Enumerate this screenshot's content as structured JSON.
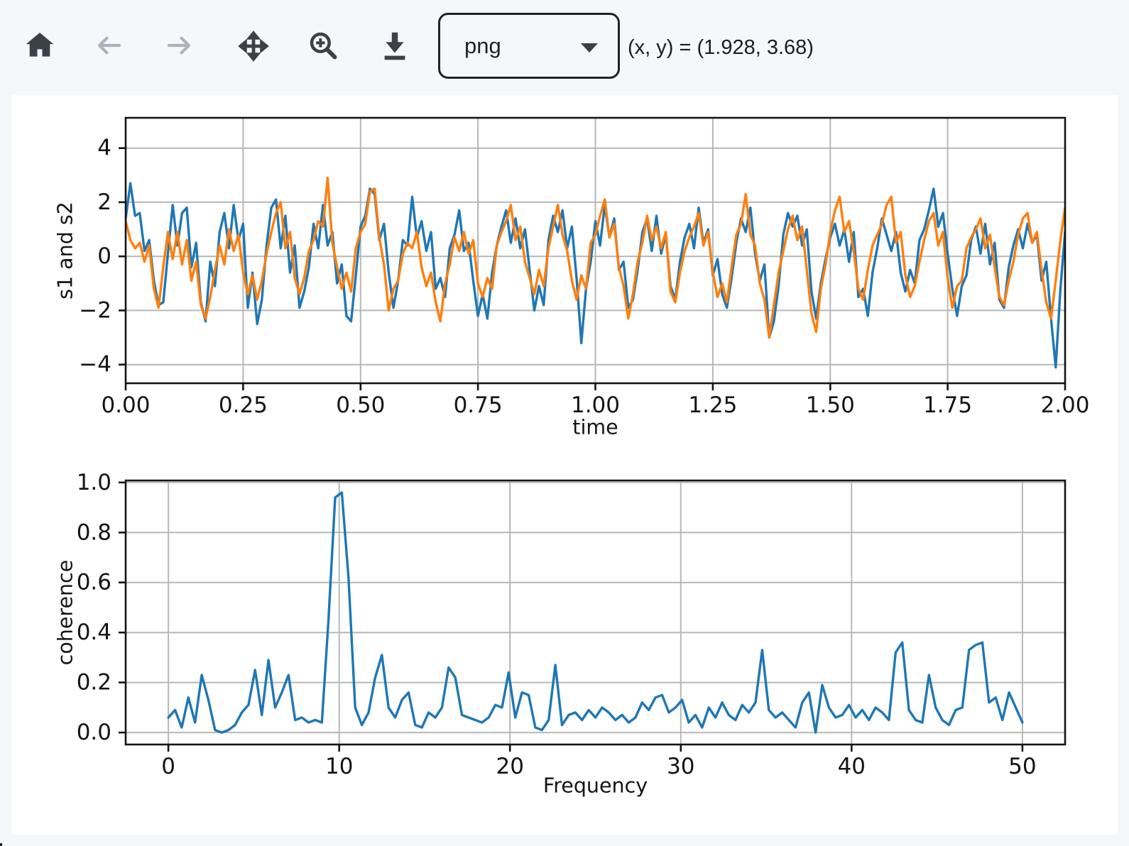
{
  "toolbar": {
    "buttons": [
      {
        "label": "Home",
        "enabled": true
      },
      {
        "label": "Back",
        "enabled": false
      },
      {
        "label": "Forward",
        "enabled": false
      },
      {
        "label": "Pan",
        "enabled": true
      },
      {
        "label": "Zoom",
        "enabled": true
      },
      {
        "label": "Download",
        "enabled": true
      }
    ],
    "format_select": {
      "value": "png"
    },
    "coords_readout": "(x, y) = (1.928, 3.68)"
  },
  "colors": {
    "icon": "#3c4148",
    "icon_disabled": "#aeb3bb",
    "page_bg": "#f6f7fb",
    "canvas_bg": "#ffffff",
    "grid": "#b7b7b7",
    "spine": "#141414",
    "text": "#141414",
    "series_blue": "#1f77b4",
    "series_orange": "#ff7f0e"
  },
  "chart_data": [
    {
      "type": "line",
      "name": "signals-chart",
      "title": "",
      "xlabel": "time",
      "ylabel": "s1 and s2",
      "xlim": [
        0,
        2
      ],
      "ylim": [
        -4.69,
        5.12
      ],
      "xticks": [
        0,
        0.25,
        0.5,
        0.75,
        1,
        1.25,
        1.5,
        1.75,
        2
      ],
      "xtick_labels": [
        "0.00",
        "0.25",
        "0.50",
        "0.75",
        "1.00",
        "1.25",
        "1.50",
        "1.75",
        "2.00"
      ],
      "yticks": [
        4,
        2,
        0,
        -2,
        -4
      ],
      "ytick_labels": [
        "4",
        "2",
        "0",
        "−2",
        "−4"
      ],
      "grid": true,
      "x_start": 0,
      "x_step": 0.01,
      "series": [
        {
          "name": "s1",
          "color": "#1f77b4",
          "values": [
            1.4,
            2.7,
            1.5,
            1.6,
            0.2,
            0.6,
            -0.9,
            -1.8,
            -1.7,
            0.1,
            1.9,
            0.4,
            1.6,
            1.8,
            -0.4,
            0.5,
            -1.7,
            -2.4,
            -0.2,
            -1.1,
            0.9,
            1.6,
            0.3,
            1.9,
            0.6,
            1.2,
            -1.9,
            -0.6,
            -2.5,
            -1.6,
            0.4,
            1.8,
            2.1,
            0.3,
            1.5,
            -0.6,
            0.4,
            -1.9,
            -1.3,
            -0.4,
            1.2,
            0.3,
            1.9,
            0.4,
            0.9,
            -1.0,
            -0.3,
            -2.2,
            -2.4,
            -0.7,
            1.1,
            1.5,
            2.5,
            2.3,
            0.6,
            1.2,
            -0.6,
            -1.9,
            -0.9,
            0.6,
            0.4,
            2.2,
            0.7,
            1.3,
            0.2,
            0.9,
            -1.2,
            -0.8,
            -1.5,
            0.3,
            0.8,
            1.7,
            0.2,
            0.5,
            -0.9,
            -2.2,
            -1.4,
            -2.3,
            -0.6,
            0.4,
            1.1,
            1.7,
            0.5,
            1.4,
            0.3,
            1.0,
            -0.5,
            -2.0,
            -1.1,
            -1.8,
            0.6,
            1.5,
            0.9,
            1.7,
            0.3,
            1.1,
            -0.8,
            -3.2,
            -1.2,
            -0.2,
            1.3,
            0.4,
            1.9,
            0.7,
            1.4,
            -0.5,
            -0.2,
            -1.9,
            -1.6,
            -0.5,
            0.9,
            1.4,
            0.2,
            1.5,
            0.1,
            0.8,
            -1.1,
            -1.6,
            -0.2,
            0.7,
            1.2,
            0.3,
            1.8,
            0.5,
            1.0,
            -0.7,
            -0.1,
            -1.4,
            -1.9,
            -0.8,
            0.5,
            1.4,
            0.9,
            1.8,
            0.1,
            -0.9,
            -0.3,
            -3.0,
            -2.4,
            -1.1,
            0.8,
            1.6,
            1.1,
            1.5,
            0.4,
            1.0,
            -1.3,
            -2.3,
            -1.0,
            -0.1,
            0.7,
            1.2,
            0.4,
            1.0,
            -0.2,
            0.9,
            -1.5,
            -1.2,
            -2.2,
            -0.6,
            0.3,
            1.4,
            0.8,
            0.2,
            0.9,
            -0.6,
            -1.3,
            -0.5,
            -1.0,
            0.6,
            1.0,
            1.7,
            2.5,
            1.1,
            1.6,
            0.1,
            -1.2,
            -2.2,
            -1.1,
            -0.7,
            0.6,
            1.1,
            0.1,
            1.2,
            -0.3,
            0.5,
            -1.6,
            -1.9,
            -0.4,
            0.4,
            1.0,
            0.3,
            1.2,
            0.5,
            0.8,
            -0.9,
            -0.2,
            -2.3,
            -4.1,
            -1.2,
            0.9
          ]
        },
        {
          "name": "s2",
          "color": "#ff7f0e",
          "values": [
            1.3,
            0.6,
            0.3,
            0.5,
            -0.2,
            0.4,
            -1.2,
            -1.9,
            -0.4,
            0.9,
            -0.1,
            0.9,
            -0.3,
            0.6,
            -0.9,
            -0.2,
            -1.8,
            -2.3,
            -1.5,
            -0.5,
            0.4,
            -0.3,
            1.0,
            0.2,
            0.8,
            -0.6,
            -1.4,
            -0.7,
            -1.6,
            -0.9,
            0.1,
            0.9,
            1.6,
            2.0,
            0.3,
            0.9,
            -0.8,
            -1.4,
            -0.8,
            0.2,
            0.6,
            1.3,
            1.1,
            2.9,
            0.5,
            -0.4,
            -1.2,
            -0.6,
            -1.3,
            0.3,
            0.9,
            1.2,
            2.4,
            2.5,
            0.7,
            -0.3,
            -2.0,
            -1.2,
            -0.9,
            0.1,
            0.5,
            0.3,
            0.9,
            -0.4,
            -1.1,
            -0.6,
            -1.7,
            -2.4,
            -1.0,
            -0.3,
            0.7,
            0.2,
            0.9,
            0.1,
            0.6,
            -1.0,
            -1.5,
            -0.8,
            -1.2,
            0.4,
            0.9,
            1.3,
            1.9,
            0.6,
            1.1,
            -0.2,
            -0.8,
            -1.4,
            -0.5,
            -1.1,
            0.3,
            1.1,
            1.9,
            0.8,
            0.2,
            -0.9,
            -1.6,
            -0.7,
            -1.2,
            0.5,
            0.8,
            1.5,
            2.1,
            0.7,
            1.2,
            -0.4,
            -1.1,
            -2.3,
            -1.4,
            -0.2,
            0.5,
            1.5,
            0.6,
            1.1,
            0.3,
            0.9,
            -1.3,
            -1.7,
            -0.6,
            0.2,
            0.7,
            1.1,
            1.6,
            0.4,
            0.9,
            -0.6,
            -1.5,
            -1.0,
            -1.7,
            -0.4,
            0.8,
            1.2,
            2.3,
            0.8,
            0.4,
            -1.0,
            -1.6,
            -3.0,
            -1.8,
            -0.6,
            0.2,
            1.0,
            1.5,
            0.6,
            1.1,
            -0.5,
            -2.1,
            -2.8,
            -1.2,
            -0.3,
            0.9,
            1.7,
            2.2,
            0.9,
            1.3,
            0.2,
            -1.2,
            -1.6,
            -0.5,
            0.4,
            0.8,
            1.2,
            1.9,
            2.2,
            0.5,
            0.9,
            -0.7,
            -1.5,
            -1.1,
            -0.2,
            0.6,
            1.3,
            1.6,
            0.4,
            0.9,
            -0.8,
            -1.9,
            -1.1,
            -0.9,
            0.3,
            0.7,
            1.0,
            1.4,
            0.3,
            0.8,
            -0.4,
            -1.5,
            -1.8,
            -0.9,
            -0.2,
            0.8,
            1.4,
            1.6,
            0.5,
            0.9,
            -0.5,
            -1.7,
            -2.3,
            -0.9,
            0.6,
            1.8
          ]
        }
      ]
    },
    {
      "type": "line",
      "name": "coherence-chart",
      "title": "",
      "xlabel": "Frequency",
      "ylabel": "coherence",
      "xlim": [
        -2.5,
        52.5
      ],
      "ylim": [
        -0.048,
        1.008
      ],
      "xticks": [
        0,
        10,
        20,
        30,
        40,
        50
      ],
      "xtick_labels": [
        "0",
        "10",
        "20",
        "30",
        "40",
        "50"
      ],
      "yticks": [
        1.0,
        0.8,
        0.6,
        0.4,
        0.2,
        0.0
      ],
      "ytick_labels": [
        "1.0",
        "0.8",
        "0.6",
        "0.4",
        "0.2",
        "0.0"
      ],
      "grid": true,
      "x_start": 0,
      "x_step": 0.390625,
      "series": [
        {
          "name": "coherence",
          "color": "#1f77b4",
          "values": [
            0.06,
            0.09,
            0.02,
            0.14,
            0.04,
            0.23,
            0.13,
            0.01,
            0.0,
            0.01,
            0.03,
            0.08,
            0.11,
            0.25,
            0.07,
            0.29,
            0.1,
            0.16,
            0.23,
            0.05,
            0.06,
            0.04,
            0.05,
            0.04,
            0.45,
            0.94,
            0.96,
            0.62,
            0.1,
            0.03,
            0.08,
            0.22,
            0.31,
            0.1,
            0.06,
            0.13,
            0.16,
            0.03,
            0.02,
            0.08,
            0.06,
            0.1,
            0.26,
            0.22,
            0.07,
            0.06,
            0.05,
            0.04,
            0.06,
            0.11,
            0.1,
            0.24,
            0.06,
            0.16,
            0.15,
            0.02,
            0.01,
            0.05,
            0.27,
            0.03,
            0.07,
            0.08,
            0.05,
            0.09,
            0.06,
            0.1,
            0.08,
            0.05,
            0.07,
            0.04,
            0.06,
            0.12,
            0.09,
            0.14,
            0.15,
            0.08,
            0.1,
            0.13,
            0.04,
            0.07,
            0.02,
            0.1,
            0.06,
            0.12,
            0.07,
            0.05,
            0.11,
            0.08,
            0.12,
            0.33,
            0.09,
            0.06,
            0.08,
            0.05,
            0.02,
            0.12,
            0.16,
            0.0,
            0.19,
            0.1,
            0.06,
            0.07,
            0.11,
            0.06,
            0.09,
            0.05,
            0.1,
            0.08,
            0.05,
            0.32,
            0.36,
            0.09,
            0.05,
            0.04,
            0.23,
            0.1,
            0.05,
            0.03,
            0.09,
            0.1,
            0.33,
            0.35,
            0.36,
            0.12,
            0.14,
            0.05,
            0.16,
            0.1,
            0.04
          ]
        }
      ]
    }
  ]
}
